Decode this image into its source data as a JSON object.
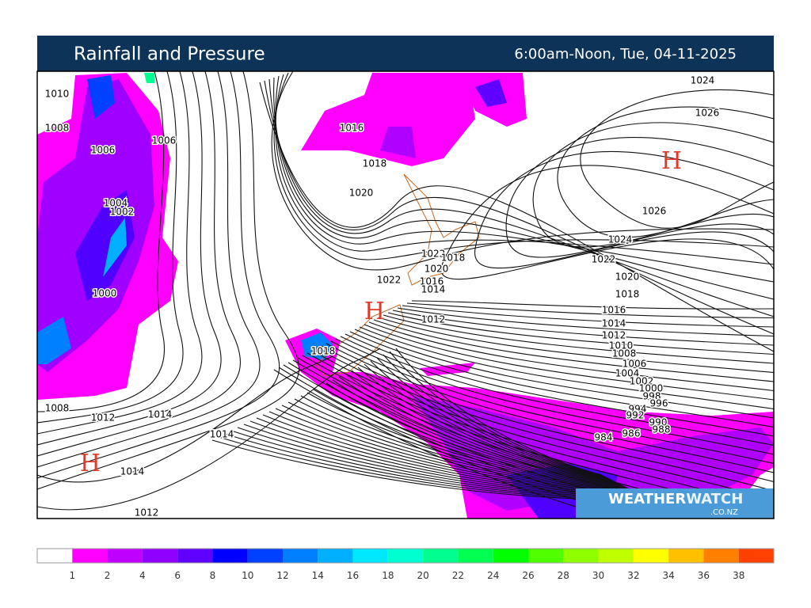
{
  "header": {
    "title": "Rainfall and Pressure",
    "time": "6:00am-Noon, Tue, 04-11-2025"
  },
  "map": {
    "isobar_labels": [
      1010,
      1008,
      1006,
      1006,
      1004,
      1002,
      1000,
      1008,
      1012,
      1014,
      1014,
      1014,
      1012,
      1016,
      1018,
      1020,
      1022,
      1018,
      1020,
      1022,
      1016,
      1014,
      1012,
      1018,
      1024,
      1026,
      1026,
      1024,
      1022,
      1020,
      1018,
      1016,
      1014,
      1012,
      1010,
      1008,
      1006,
      1004,
      1002,
      1000,
      998,
      996,
      994,
      992,
      990,
      988,
      986,
      984
    ],
    "high_labels": [
      "H",
      "H",
      "H"
    ]
  },
  "logo": {
    "brand_a": "WEATHER",
    "brand_b": "WATCH",
    "domain": ".CO.NZ"
  },
  "colorbar": {
    "colors": [
      "#ffffff",
      "#ff00ff",
      "#c000ff",
      "#9000ff",
      "#6000ff",
      "#0000ff",
      "#0040ff",
      "#0080ff",
      "#00b0ff",
      "#00e8ff",
      "#00ffd0",
      "#00ff90",
      "#00ff50",
      "#00ff00",
      "#50ff00",
      "#90ff00",
      "#c0ff00",
      "#ffff00",
      "#ffc000",
      "#ff8000",
      "#ff4000"
    ],
    "labels": [
      1,
      2,
      4,
      6,
      8,
      10,
      12,
      14,
      16,
      18,
      20,
      22,
      24,
      26,
      28,
      30,
      32,
      34,
      36,
      38
    ]
  }
}
